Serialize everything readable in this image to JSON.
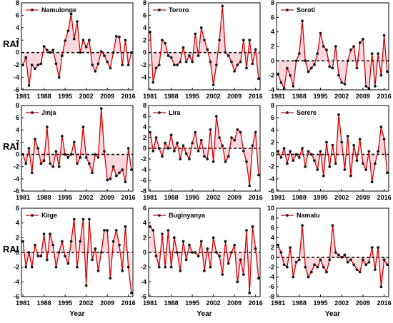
{
  "colors": {
    "line": "#d40000",
    "marker": "#1a1a1a",
    "fill": "#f4b8c4",
    "zero_line": "#000000",
    "axis": "#000000"
  },
  "axis_titles": {
    "y": "RAI",
    "x": "Year"
  },
  "chart_data": [
    {
      "type": "line",
      "title": "Namulonge",
      "legend": "Namulonge",
      "xlabel": "",
      "ylabel": "RAI",
      "x": [
        1981,
        1982,
        1983,
        1984,
        1985,
        1986,
        1987,
        1988,
        1989,
        1990,
        1991,
        1992,
        1993,
        1994,
        1995,
        1996,
        1997,
        1998,
        1999,
        2000,
        2001,
        2002,
        2003,
        2004,
        2005,
        2006,
        2007,
        2008,
        2009,
        2010,
        2011,
        2012,
        2013,
        2014,
        2015,
        2016,
        2017
      ],
      "y": [
        -2.0,
        -0.8,
        -5.3,
        -2.0,
        -2.6,
        -2.0,
        -1.8,
        1.0,
        0.4,
        0.0,
        0.4,
        -1.8,
        -4.0,
        -0.5,
        1.9,
        3.5,
        6.2,
        2.2,
        5.0,
        0.0,
        2.0,
        0.9,
        2.0,
        -2.0,
        -3.0,
        -1.8,
        0.2,
        -0.5,
        -1.5,
        -2.5,
        0.0,
        2.6,
        2.5,
        -2.0,
        2.0,
        -2.0,
        0.0
      ],
      "xlim": [
        1980.5,
        2017.5
      ],
      "ylim": [
        -6,
        8
      ],
      "yticks": [
        -6,
        -4,
        -2,
        0,
        2,
        4,
        6,
        8
      ],
      "xticks": [
        1981,
        1988,
        1995,
        2002,
        2009,
        2016
      ]
    },
    {
      "type": "line",
      "title": "Tororo",
      "legend": "Tororo",
      "xlabel": "",
      "ylabel": "",
      "x": [
        1981,
        1982,
        1983,
        1984,
        1985,
        1986,
        1987,
        1988,
        1989,
        1990,
        1991,
        1992,
        1993,
        1994,
        1995,
        1996,
        1997,
        1998,
        1999,
        2000,
        2001,
        2002,
        2003,
        2004,
        2005,
        2006,
        2007,
        2008,
        2009,
        2010,
        2011,
        2012,
        2013,
        2014,
        2015,
        2016,
        2017
      ],
      "y": [
        3.3,
        -4.8,
        -2.5,
        -2.0,
        2.0,
        1.5,
        -0.5,
        -0.8,
        -2.0,
        -2.0,
        -1.5,
        0.8,
        -1.5,
        -0.5,
        -1.5,
        3.0,
        -0.5,
        4.0,
        2.0,
        0.5,
        -1.5,
        -5.2,
        -2.0,
        2.0,
        7.5,
        0.0,
        -0.5,
        -1.5,
        -3.0,
        -2.0,
        -1.5,
        2.0,
        -2.5,
        2.0,
        -1.8,
        0.5,
        -4.2
      ],
      "xlim": [
        1980.5,
        2017.5
      ],
      "ylim": [
        -6,
        8
      ],
      "yticks": [
        -4,
        -2,
        0,
        2,
        4,
        6,
        8
      ],
      "xticks": [
        1981,
        1988,
        1995,
        2002,
        2009,
        2016
      ]
    },
    {
      "type": "line",
      "title": "Soroti",
      "legend": "Soroti",
      "xlabel": "",
      "ylabel": "",
      "x": [
        1981,
        1982,
        1983,
        1984,
        1985,
        1986,
        1987,
        1988,
        1989,
        1990,
        1991,
        1992,
        1993,
        1994,
        1995,
        1996,
        1997,
        1998,
        1999,
        2000,
        2001,
        2002,
        2003,
        2004,
        2005,
        2006,
        2007,
        2008,
        2009,
        2010,
        2011,
        2012,
        2013,
        2014,
        2015,
        2016,
        2017
      ],
      "y": [
        -1.8,
        -3.0,
        -3.8,
        -1.0,
        -2.0,
        -3.5,
        0.0,
        1.0,
        5.5,
        0.0,
        -1.5,
        -1.0,
        -0.5,
        1.0,
        3.8,
        2.0,
        1.5,
        -0.8,
        -1.0,
        2.0,
        -2.0,
        -3.0,
        -3.2,
        0.0,
        1.5,
        2.0,
        -1.0,
        2.5,
        3.0,
        -3.5,
        -3.8,
        1.0,
        -3.5,
        1.0,
        -2.0,
        3.5,
        -1.5
      ],
      "xlim": [
        1980.5,
        2017.5
      ],
      "ylim": [
        -4,
        8
      ],
      "yticks": [
        -4,
        -2,
        0,
        2,
        4,
        6,
        8
      ],
      "xticks": [
        1981,
        1988,
        1995,
        2002,
        2009,
        2016
      ]
    },
    {
      "type": "line",
      "title": "Jinja",
      "legend": "Jinja",
      "xlabel": "",
      "ylabel": "RAI",
      "x": [
        1981,
        1982,
        1983,
        1984,
        1985,
        1986,
        1987,
        1988,
        1989,
        1990,
        1991,
        1992,
        1993,
        1994,
        1995,
        1996,
        1997,
        1998,
        1999,
        2000,
        2001,
        2002,
        2003,
        2004,
        2005,
        2006,
        2007,
        2008,
        2009,
        2010,
        2011,
        2012,
        2013,
        2014,
        2015,
        2016,
        2017
      ],
      "y": [
        0.0,
        -1.5,
        1.0,
        -3.0,
        2.5,
        1.0,
        -1.5,
        -1.0,
        4.5,
        -1.5,
        -2.0,
        0.5,
        -2.0,
        3.0,
        0.0,
        -0.5,
        0.0,
        2.0,
        -1.5,
        -0.5,
        4.5,
        -0.5,
        -1.5,
        -3.0,
        0.0,
        -0.5,
        7.5,
        0.5,
        -4.2,
        -4.0,
        -2.0,
        -3.5,
        -3.0,
        -2.5,
        -4.5,
        1.0,
        -2.5
      ],
      "xlim": [
        1980.5,
        2017.5
      ],
      "ylim": [
        -6,
        8
      ],
      "yticks": [
        -6,
        -4,
        -2,
        0,
        2,
        4,
        6,
        8
      ],
      "xticks": [
        1981,
        1988,
        1995,
        2002,
        2009,
        2016
      ]
    },
    {
      "type": "line",
      "title": "Lira",
      "legend": "Lira",
      "xlabel": "",
      "ylabel": "",
      "x": [
        1981,
        1982,
        1983,
        1984,
        1985,
        1986,
        1987,
        1988,
        1989,
        1990,
        1991,
        1992,
        1993,
        1994,
        1995,
        1996,
        1997,
        1998,
        1999,
        2000,
        2001,
        2002,
        2003,
        2004,
        2005,
        2006,
        2007,
        2008,
        2009,
        2010,
        2011,
        2012,
        2013,
        2014,
        2015,
        2016,
        2017
      ],
      "y": [
        3.0,
        -0.5,
        2.0,
        0.0,
        -1.5,
        1.0,
        0.0,
        2.5,
        -0.5,
        1.0,
        -2.0,
        0.5,
        -1.0,
        -2.0,
        1.0,
        3.0,
        -0.5,
        1.5,
        -1.5,
        -2.0,
        3.5,
        -2.5,
        6.0,
        2.0,
        0.5,
        -2.5,
        -1.5,
        2.0,
        1.5,
        3.5,
        3.0,
        -0.5,
        -2.5,
        -7.0,
        0.5,
        3.0,
        -5.0
      ],
      "xlim": [
        1980.5,
        2017.5
      ],
      "ylim": [
        -8,
        8
      ],
      "yticks": [
        -8,
        -6,
        -4,
        -2,
        0,
        2,
        4,
        6,
        8
      ],
      "xticks": [
        1981,
        1988,
        1995,
        2002,
        2009,
        2016
      ]
    },
    {
      "type": "line",
      "title": "Serere",
      "legend": "Serere",
      "xlabel": "",
      "ylabel": "",
      "x": [
        1981,
        1982,
        1983,
        1984,
        1985,
        1986,
        1987,
        1988,
        1989,
        1990,
        1991,
        1992,
        1993,
        1994,
        1995,
        1996,
        1997,
        1998,
        1999,
        2000,
        2001,
        2002,
        2003,
        2004,
        2005,
        2006,
        2007,
        2008,
        2009,
        2010,
        2011,
        2012,
        2013,
        2014,
        2015,
        2016,
        2017
      ],
      "y": [
        0.5,
        -0.5,
        1.0,
        -1.5,
        0.5,
        -1.0,
        0.0,
        -0.5,
        1.0,
        -2.0,
        0.5,
        0.0,
        -1.0,
        -2.5,
        0.5,
        -3.5,
        2.0,
        -2.0,
        1.5,
        -1.5,
        6.5,
        2.0,
        -2.5,
        3.0,
        -3.5,
        1.5,
        -1.0,
        2.5,
        -1.5,
        -2.5,
        0.5,
        -4.5,
        -1.5,
        0.5,
        4.5,
        2.5,
        -3.0
      ],
      "xlim": [
        1980.5,
        2017.5
      ],
      "ylim": [
        -6,
        8
      ],
      "yticks": [
        -6,
        -4,
        -2,
        0,
        2,
        4,
        6,
        8
      ],
      "xticks": [
        1981,
        1988,
        1995,
        2002,
        2009,
        2016
      ]
    },
    {
      "type": "line",
      "title": "Kiige",
      "legend": "Kiige",
      "xlabel": "",
      "ylabel": "RAI",
      "x": [
        1981,
        1982,
        1983,
        1984,
        1985,
        1986,
        1987,
        1988,
        1989,
        1990,
        1991,
        1992,
        1993,
        1994,
        1995,
        1996,
        1997,
        1998,
        1999,
        2000,
        2001,
        2002,
        2003,
        2004,
        2005,
        2006,
        2007,
        2008,
        2009,
        2010,
        2011,
        2012,
        2013,
        2014,
        2015,
        2016,
        2017
      ],
      "y": [
        1.5,
        -2.0,
        0.0,
        -2.0,
        1.0,
        -0.5,
        -0.5,
        2.5,
        -1.0,
        2.5,
        1.0,
        -2.0,
        0.0,
        1.5,
        -0.5,
        -1.5,
        1.5,
        4.5,
        -2.0,
        1.5,
        4.5,
        -4.5,
        4.5,
        -1.0,
        0.5,
        -2.5,
        0.0,
        3.0,
        3.0,
        -3.5,
        1.5,
        3.0,
        1.0,
        -2.5,
        3.5,
        -2.0,
        -5.5
      ],
      "xlim": [
        1980.5,
        2017.5
      ],
      "ylim": [
        -6,
        6
      ],
      "yticks": [
        -6,
        -4,
        -2,
        0,
        2,
        4,
        6
      ],
      "xticks": [
        1981,
        1988,
        1995,
        2002,
        2009,
        2016
      ]
    },
    {
      "type": "line",
      "title": "Buginyanya",
      "legend": "Buginyanya",
      "xlabel": "Year",
      "ylabel": "",
      "x": [
        1981,
        1982,
        1983,
        1984,
        1985,
        1986,
        1987,
        1988,
        1989,
        1990,
        1991,
        1992,
        1993,
        1994,
        1995,
        1996,
        1997,
        1998,
        1999,
        2000,
        2001,
        2002,
        2003,
        2004,
        2005,
        2006,
        2007,
        2008,
        2009,
        2010,
        2011,
        2012,
        2013,
        2014,
        2015,
        2016,
        2017
      ],
      "y": [
        3.5,
        3.0,
        -0.5,
        -2.0,
        2.5,
        -2.0,
        3.0,
        -2.0,
        2.0,
        0.0,
        -2.5,
        1.5,
        -1.0,
        1.0,
        0.0,
        0.0,
        -0.5,
        1.5,
        -2.5,
        0.5,
        -2.0,
        2.0,
        0.0,
        -0.5,
        -3.0,
        1.5,
        -1.5,
        0.0,
        1.0,
        -4.0,
        -1.0,
        -3.0,
        3.0,
        -5.5,
        3.5,
        0.5,
        -3.5
      ],
      "xlim": [
        1980.5,
        2017.5
      ],
      "ylim": [
        -6,
        6
      ],
      "yticks": [
        -6,
        -4,
        -2,
        0,
        2,
        4,
        6
      ],
      "xticks": [
        1981,
        1988,
        1995,
        2002,
        2009,
        2016
      ]
    },
    {
      "type": "line",
      "title": "Namalu",
      "legend": "Namalu",
      "xlabel": "",
      "ylabel": "",
      "x": [
        1981,
        1982,
        1983,
        1984,
        1985,
        1986,
        1987,
        1988,
        1989,
        1990,
        1991,
        1992,
        1993,
        1994,
        1995,
        1996,
        1997,
        1998,
        1999,
        2000,
        2001,
        2002,
        2003,
        2004,
        2005,
        2006,
        2007,
        2008,
        2009,
        2010,
        2011,
        2012,
        2013,
        2014,
        2015,
        2016,
        2017
      ],
      "y": [
        2.5,
        1.0,
        -1.5,
        -2.0,
        2.0,
        -4.0,
        -1.0,
        -0.5,
        6.5,
        -2.0,
        -4.0,
        -3.0,
        -1.5,
        -2.0,
        -0.5,
        -2.0,
        -3.0,
        -0.5,
        6.5,
        1.0,
        0.5,
        0.0,
        0.5,
        -1.0,
        -0.5,
        -1.5,
        -2.5,
        -3.0,
        -0.5,
        -1.5,
        -1.0,
        2.0,
        -2.5,
        2.0,
        -6.0,
        -0.5,
        -1.5
      ],
      "xlim": [
        1980.5,
        2017.5
      ],
      "ylim": [
        -8,
        10
      ],
      "yticks": [
        -8,
        -6,
        -4,
        -2,
        0,
        2,
        4,
        6,
        8,
        10
      ],
      "xticks": [
        1981,
        1988,
        1995,
        2002,
        2009,
        2016
      ]
    }
  ]
}
